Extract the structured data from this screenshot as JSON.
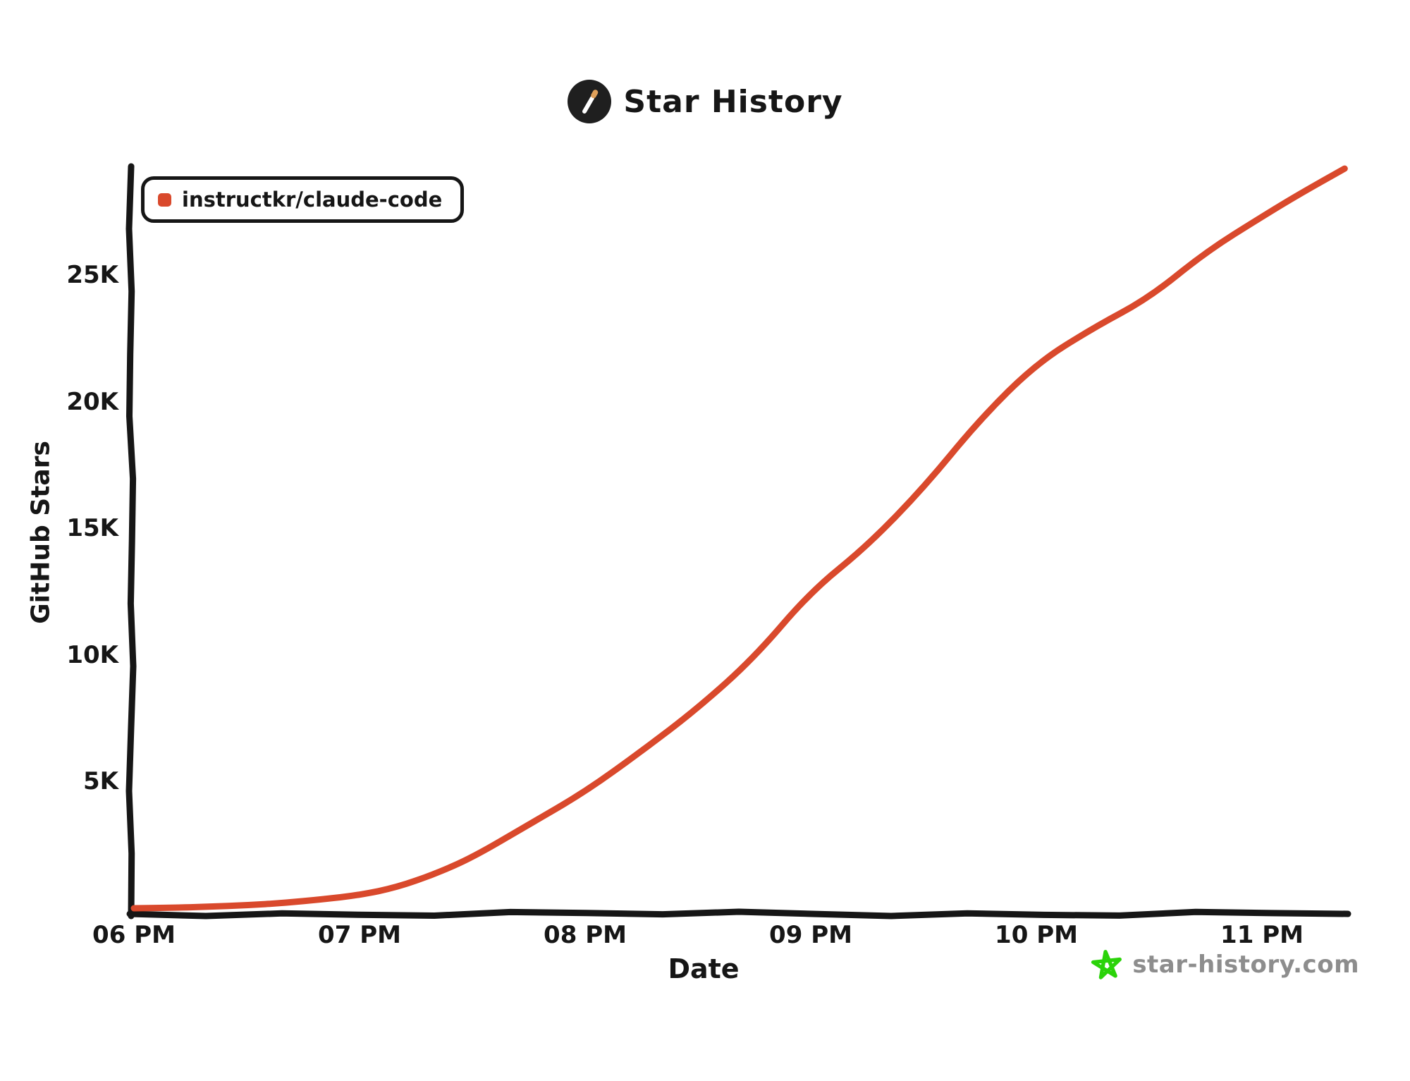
{
  "header": {
    "title": "Star History"
  },
  "footer": {
    "site_label": "star-history.com"
  },
  "colors": {
    "series": "#d9492c",
    "axis": "#161616",
    "text": "#161616",
    "footer_text": "#8d8d8d",
    "footer_star": "#2bd30a",
    "logo_bg": "#1f1f1f",
    "logo_wand": "#ffffff",
    "logo_tip": "#dfa05a"
  },
  "chart_data": {
    "type": "line",
    "title": "Star History",
    "xlabel": "Date",
    "ylabel": "GitHub Stars",
    "legend_position": "top-left",
    "grid": false,
    "style": "hand-drawn-xkcd",
    "x_axis": {
      "kind": "time",
      "ticks": [
        {
          "hour": 18,
          "label": "06 PM"
        },
        {
          "hour": 19,
          "label": "07 PM"
        },
        {
          "hour": 20,
          "label": "08 PM"
        },
        {
          "hour": 21,
          "label": "09 PM"
        },
        {
          "hour": 22,
          "label": "10 PM"
        },
        {
          "hour": 23,
          "label": "11 PM"
        }
      ],
      "range_hours": [
        18.0,
        23.4
      ]
    },
    "y_axis": {
      "ticks": [
        {
          "value": 5000,
          "label": "5K"
        },
        {
          "value": 10000,
          "label": "10K"
        },
        {
          "value": 15000,
          "label": "15K"
        },
        {
          "value": 20000,
          "label": "20K"
        },
        {
          "value": 25000,
          "label": "25K"
        }
      ],
      "range": [
        0,
        29500
      ]
    },
    "series": [
      {
        "name": "instructkr/claude-code",
        "color": "#d9492c",
        "points": [
          [
            "18:00",
            0
          ],
          [
            "18:10",
            20
          ],
          [
            "18:20",
            60
          ],
          [
            "18:30",
            120
          ],
          [
            "18:40",
            210
          ],
          [
            "18:50",
            350
          ],
          [
            "19:00",
            520
          ],
          [
            "19:10",
            830
          ],
          [
            "19:20",
            1350
          ],
          [
            "19:30",
            2000
          ],
          [
            "19:45",
            3300
          ],
          [
            "20:00",
            4600
          ],
          [
            "20:15",
            6200
          ],
          [
            "20:30",
            7900
          ],
          [
            "20:45",
            9900
          ],
          [
            "21:00",
            12500
          ],
          [
            "21:15",
            14300
          ],
          [
            "21:30",
            16600
          ],
          [
            "21:45",
            19300
          ],
          [
            "22:00",
            21500
          ],
          [
            "22:15",
            22900
          ],
          [
            "22:30",
            24100
          ],
          [
            "22:45",
            25900
          ],
          [
            "23:00",
            27300
          ],
          [
            "23:10",
            28200
          ],
          [
            "23:22",
            29200
          ]
        ]
      }
    ]
  }
}
